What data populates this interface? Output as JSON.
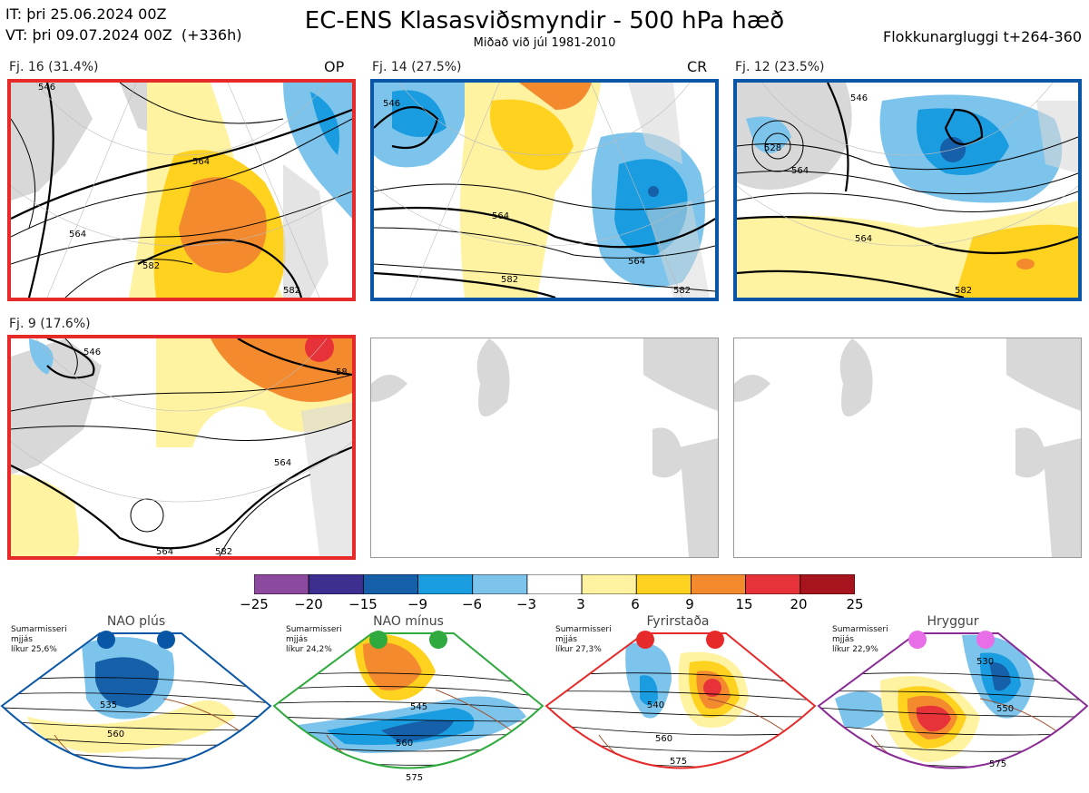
{
  "header": {
    "init_time": "IT: þri 25.06.2024 00Z",
    "valid_time": "VT: þri 09.07.2024 00Z  (+336h)",
    "title": "EC-ENS Klasasviðsmyndir - 500 hPa hæð",
    "subtitle": "Miðað við júl 1981-2010",
    "window": "Flokkunargluggi t+264-360"
  },
  "panels": [
    {
      "label": "Fj. 16 (31.4%)",
      "tag": "OP",
      "border": "#e62a2a",
      "contours": [
        "546",
        "564",
        "564",
        "582",
        "582"
      ]
    },
    {
      "label": "Fj. 14 (27.5%)",
      "tag": "CR",
      "border": "#0a56a6",
      "contours": [
        "546",
        "564",
        "564",
        "582",
        "582"
      ]
    },
    {
      "label": "Fj. 12 (23.5%)",
      "tag": "",
      "border": "#0a56a6",
      "contours": [
        "546",
        "528",
        "564",
        "564",
        "582"
      ]
    },
    {
      "label": "Fj. 9 (17.6%)",
      "tag": "",
      "border": "#e62a2a",
      "contours": [
        "546",
        "564",
        "564",
        "582",
        "58"
      ]
    },
    {
      "label": "",
      "tag": "",
      "border": "#999999",
      "contours": []
    },
    {
      "label": "",
      "tag": "",
      "border": "#999999",
      "contours": []
    }
  ],
  "colorbar": {
    "ticks": [
      "−25",
      "−20",
      "−15",
      "−9",
      "−6",
      "−3",
      "3",
      "6",
      "9",
      "15",
      "20",
      "25"
    ],
    "colors": [
      "#8b4a9e",
      "#3c2f8f",
      "#1560a8",
      "#1a9ce0",
      "#7cc4ec",
      "#ffffff",
      "#fff2a0",
      "#ffd21f",
      "#f48a2e",
      "#e8323a",
      "#a8141e"
    ]
  },
  "regimes": [
    {
      "name": "NAO plús",
      "info": "Sumarmisseri\nmjjás\nlíkur 25,6%",
      "color": "#0a56a6",
      "dot": "#0a56a6",
      "contours": [
        "535",
        "560"
      ]
    },
    {
      "name": "NAO mínus",
      "info": "Sumarmisseri\nmjjás\nlíkur 24,2%",
      "color": "#2eaa3e",
      "dot": "#2eaa3e",
      "contours": [
        "545",
        "560",
        "575"
      ]
    },
    {
      "name": "Fyrirstaða",
      "info": "Sumarmisseri\nmjjás\nlíkur 27,3%",
      "color": "#e62a2a",
      "dot": "#e62a2a",
      "contours": [
        "540",
        "560",
        "575"
      ]
    },
    {
      "name": "Hryggur",
      "info": "Sumarmisseri\nmjjás\nlíkur 22,9%",
      "color": "#8a2a95",
      "dot": "#e86ee8",
      "contours": [
        "530",
        "550",
        "575"
      ]
    }
  ]
}
